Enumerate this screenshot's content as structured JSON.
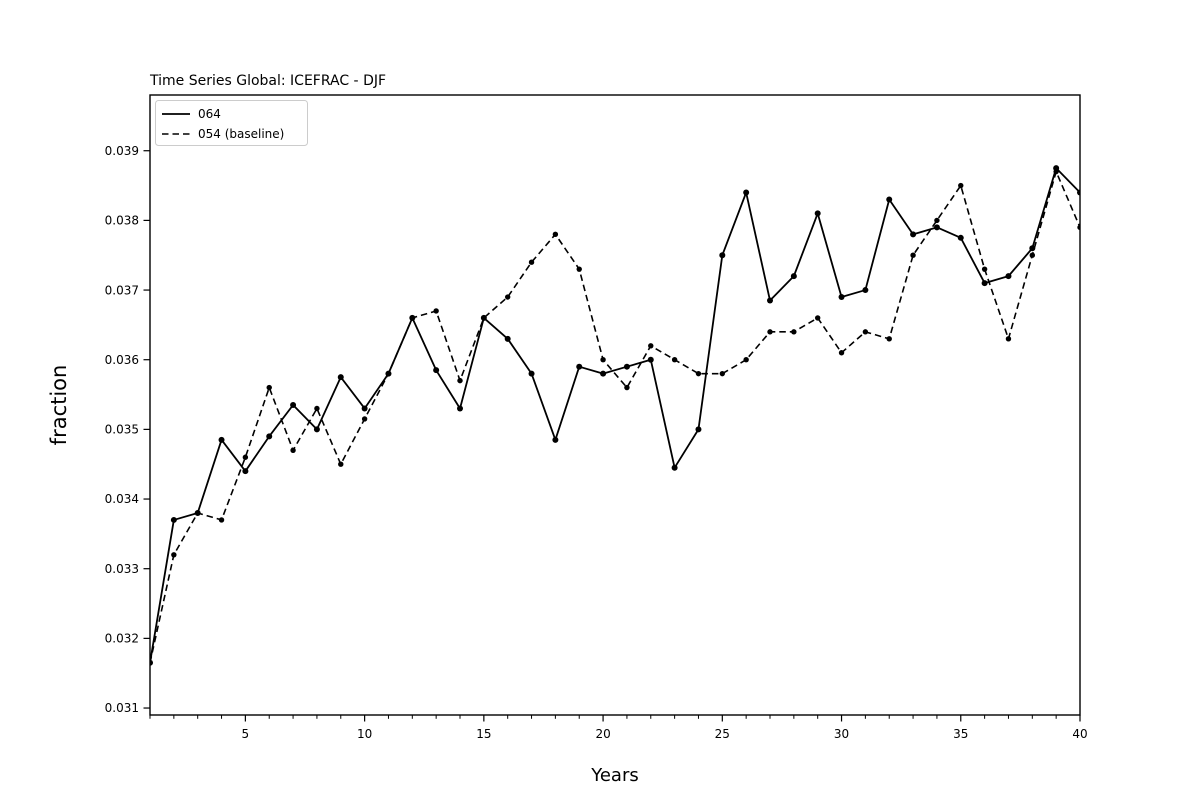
{
  "chart_data": {
    "type": "line",
    "title": "Time Series Global: ICEFRAC - DJF",
    "xlabel": "Years",
    "ylabel": "fraction",
    "x": [
      1,
      2,
      3,
      4,
      5,
      6,
      7,
      8,
      9,
      10,
      11,
      12,
      13,
      14,
      15,
      16,
      17,
      18,
      19,
      20,
      21,
      22,
      23,
      24,
      25,
      26,
      27,
      28,
      29,
      30,
      31,
      32,
      33,
      34,
      35,
      36,
      37,
      38,
      39,
      40
    ],
    "series": [
      {
        "name": "064",
        "line_style": "solid",
        "color": "#000000",
        "marker": "point",
        "values": [
          0.03165,
          0.0337,
          0.0338,
          0.03485,
          0.0344,
          0.0349,
          0.03535,
          0.035,
          0.03575,
          0.0353,
          0.0358,
          0.0366,
          0.03585,
          0.0353,
          0.0366,
          0.0363,
          0.0358,
          0.03485,
          0.0359,
          0.0358,
          0.0359,
          0.036,
          0.03445,
          0.035,
          0.0375,
          0.0384,
          0.03685,
          0.0372,
          0.0381,
          0.0369,
          0.037,
          0.0383,
          0.0378,
          0.0379,
          0.03775,
          0.0371,
          0.0372,
          0.0376,
          0.03875,
          0.0384
        ]
      },
      {
        "name": "054 (baseline)",
        "line_style": "dashed",
        "color": "#000000",
        "marker": "point",
        "values": [
          0.03165,
          0.0332,
          0.0338,
          0.0337,
          0.0346,
          0.0356,
          0.0347,
          0.0353,
          0.0345,
          0.03515,
          0.0358,
          0.0366,
          0.0367,
          0.0357,
          0.0366,
          0.0369,
          0.0374,
          0.0378,
          0.0373,
          0.036,
          0.0356,
          0.0362,
          0.036,
          0.0358,
          0.0358,
          0.036,
          0.0364,
          0.0364,
          0.0366,
          0.0361,
          0.0364,
          0.0363,
          0.0375,
          0.038,
          0.0385,
          0.0373,
          0.0363,
          0.0375,
          0.0387,
          0.0379
        ]
      }
    ],
    "xlim": [
      1,
      40
    ],
    "ylim": [
      0.0309,
      0.0398
    ],
    "xticks_major": [
      5,
      10,
      15,
      20,
      25,
      30,
      35,
      40
    ],
    "xticks_minor_step": 1,
    "yticks": [
      0.031,
      0.032,
      0.033,
      0.034,
      0.035,
      0.036,
      0.037,
      0.038,
      0.039
    ],
    "ytick_decimals": 3,
    "legend_position": "upper left",
    "grid": false,
    "background": "#ffffff",
    "axis_color": "#000000"
  }
}
